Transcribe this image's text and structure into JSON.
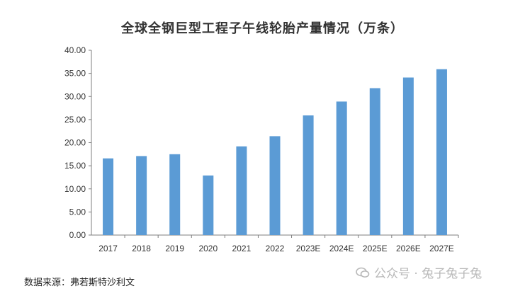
{
  "chart_data": {
    "type": "bar",
    "title": "全球全钢巨型工程子午线轮胎产量情况（万条）",
    "categories": [
      "2017",
      "2018",
      "2019",
      "2020",
      "2021",
      "2022",
      "2023E",
      "2024E",
      "2025E",
      "2026E",
      "2027E"
    ],
    "values": [
      16.6,
      17.1,
      17.5,
      12.9,
      19.2,
      21.4,
      25.9,
      28.9,
      31.8,
      34.1,
      35.9
    ],
    "yticks": [
      "0.00",
      "5.00",
      "10.00",
      "15.00",
      "20.00",
      "25.00",
      "30.00",
      "35.00",
      "40.00"
    ],
    "ylim": [
      0,
      40
    ],
    "xlabel": "",
    "ylabel": "",
    "bar_color": "#5B9BD5",
    "grid": false,
    "legend": "none"
  },
  "source": "数据来源：弗若斯特沙利文",
  "watermark": "公众号 · 兔子兔子兔"
}
